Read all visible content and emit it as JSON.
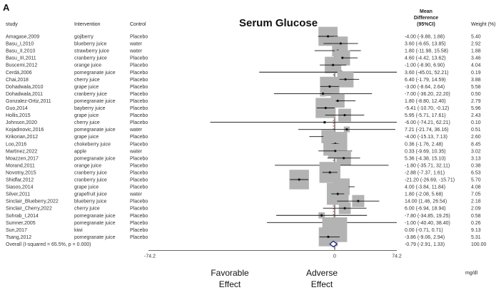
{
  "panel_label": "A",
  "chart_title": "Serum Glucose",
  "headers": {
    "study": "study",
    "intervention": "Intervention",
    "control": "Control",
    "mean_difference": [
      "Mean",
      "Difference",
      "(95%CI)"
    ],
    "weight": "Weight (%)"
  },
  "axis": {
    "left_tick": "-74.2",
    "center_tick": "0",
    "right_tick": "74.2",
    "unit": "mg/dl",
    "favorable_label": [
      "Favorable",
      "Effect"
    ],
    "adverse_label": [
      "Adverse",
      "Effect"
    ]
  },
  "chart_data": {
    "type": "forest",
    "xlim": [
      -74.2,
      74.2
    ],
    "reference_line": 0,
    "studies": [
      {
        "study": "Amagase,2009",
        "intervention": "gojiberry",
        "control": "Placebo",
        "md": -4.0,
        "lo": -9.88,
        "hi": 1.88,
        "ci_text": "-4.00 (-9.88, 1.88)",
        "weight": "5.40",
        "w": 5.4
      },
      {
        "study": "Basu_I,2010",
        "intervention": "blueberry juice",
        "control": "water",
        "md": 3.6,
        "lo": -6.65,
        "hi": 13.85,
        "ci_text": "3.60 (-6.65, 13.85)",
        "weight": "2.92",
        "w": 2.92
      },
      {
        "study": "Basu_II,2010",
        "intervention": "strawberry juice",
        "control": "water",
        "md": 1.8,
        "lo": -11.98,
        "hi": 15.58,
        "ci_text": "1.80 (-11.98, 15.58)",
        "weight": "1.88",
        "w": 1.88
      },
      {
        "study": "Basu_III,2011",
        "intervention": "cranberry juice",
        "control": "Placebo",
        "md": 4.6,
        "lo": -4.42,
        "hi": 13.62,
        "ci_text": "4.60 (-4.42, 13.62)",
        "weight": "3.46",
        "w": 3.46
      },
      {
        "study": "Buscemi,2012",
        "intervention": "orange juice",
        "control": "Placebo",
        "md": -1.0,
        "lo": -8.9,
        "hi": 6.9,
        "ci_text": "-1.00 (-8.90, 6.90)",
        "weight": "4.04",
        "w": 4.04
      },
      {
        "study": "Cerdá,2006",
        "intervention": "pomegranate juice",
        "control": "Placebo",
        "md": 3.6,
        "lo": -45.01,
        "hi": 52.21,
        "ci_text": "3.60 (-45.01, 52.21)",
        "weight": "0.19",
        "w": 0.19
      },
      {
        "study": "Chai,2018",
        "intervention": "cherry juice",
        "control": "Placebo",
        "md": 6.4,
        "lo": -1.79,
        "hi": 14.59,
        "ci_text": "6.40 (-1.79, 14.59)",
        "weight": "3.88",
        "w": 3.88
      },
      {
        "study": "Dohadwala,2010",
        "intervention": "grape juice",
        "control": "Placebo",
        "md": -3.0,
        "lo": -8.64,
        "hi": 2.64,
        "ci_text": "-3.00 (-8.64, 2.64)",
        "weight": "5.58",
        "w": 5.58
      },
      {
        "study": "Dohadwala,2011",
        "intervention": "cranberry juice",
        "control": "Placebo",
        "md": -7.0,
        "lo": -36.2,
        "hi": 22.2,
        "ci_text": "-7.00 (-36.20, 22.20)",
        "weight": "0.50",
        "w": 0.5
      },
      {
        "study": "Gonzalez-Ortiz,2011",
        "intervention": "pomegranate juice",
        "control": "Placebo",
        "md": 1.8,
        "lo": -8.8,
        "hi": 12.4,
        "ci_text": "1.80 (-8.80, 12.40)",
        "weight": "2.79",
        "w": 2.79
      },
      {
        "study": "Guo,2014",
        "intervention": "bayberry juice",
        "control": "Placebo",
        "md": -5.41,
        "lo": -10.7,
        "hi": -0.12,
        "ci_text": "-5.41 (-10.70, -0.12)",
        "weight": "5.96",
        "w": 5.96
      },
      {
        "study": "Hollis,2015",
        "intervention": "grape juice",
        "control": "Placebo",
        "md": 5.95,
        "lo": -5.71,
        "hi": 17.61,
        "ci_text": "5.95 (-5.71, 17.61)",
        "weight": "2.43",
        "w": 2.43
      },
      {
        "study": "Johnson,2020",
        "intervention": "cherry juice",
        "control": "Placebo",
        "md": -6.0,
        "lo": -74.21,
        "hi": 62.21,
        "ci_text": "-6.00 (-74.21, 62.21)",
        "weight": "0.10",
        "w": 0.1
      },
      {
        "study": "Kojadinovic,2016",
        "intervention": "pomegranate juice",
        "control": "water",
        "md": 7.21,
        "lo": -21.74,
        "hi": 36.16,
        "ci_text": "7.21 (-21.74, 36.16)",
        "weight": "0.51",
        "w": 0.51
      },
      {
        "study": "Krikorian,2012",
        "intervention": "grape juice",
        "control": "Placebo",
        "md": -4.0,
        "lo": -15.13,
        "hi": 7.13,
        "ci_text": "-4.00 (-15.13, 7.13)",
        "weight": "2.60",
        "w": 2.6
      },
      {
        "study": "Loo,2016",
        "intervention": "chokeberry juice",
        "control": "Placebo",
        "md": 0.36,
        "lo": -1.76,
        "hi": 2.48,
        "ci_text": "0.36 (-1.76, 2.48)",
        "weight": "8.45",
        "w": 8.45
      },
      {
        "study": "Martinez,2022",
        "intervention": "apple",
        "control": "water",
        "md": 0.33,
        "lo": -9.69,
        "hi": 10.35,
        "ci_text": "0.33 (-9.69, 10.35)",
        "weight": "3.02",
        "w": 3.02
      },
      {
        "study": "Moazzen,2017",
        "intervention": "pomegranate juice",
        "control": "Placebo",
        "md": 5.36,
        "lo": -4.38,
        "hi": 15.1,
        "ci_text": "5.36 (-4.38, 15.10)",
        "weight": "3.13",
        "w": 3.13
      },
      {
        "study": "Morand,2011",
        "intervention": "orange juice",
        "control": "Placebo",
        "md": -1.8,
        "lo": -35.71,
        "hi": 32.11,
        "ci_text": "-1.80 (-35.71, 32.11)",
        "weight": "0.38",
        "w": 0.38
      },
      {
        "study": "Novotny,2015",
        "intervention": "cranberry juice",
        "control": "Placebo",
        "md": -2.88,
        "lo": -7.37,
        "hi": 1.61,
        "ci_text": "-2.88 (-7.37, 1.61)",
        "weight": "6.53",
        "w": 6.53
      },
      {
        "study": "Shidfar,2012",
        "intervention": "cranberry juice",
        "control": "Placebo",
        "md": -21.2,
        "lo": -26.69,
        "hi": -15.71,
        "ci_text": "-21.20 (-26.69, -15.71)",
        "weight": "5.70",
        "w": 5.7
      },
      {
        "study": "Siasos,2014",
        "intervention": "grape juice",
        "control": "Placebo",
        "md": 4.0,
        "lo": -3.84,
        "hi": 11.84,
        "ci_text": "4.00 (-3.84, 11.84)",
        "weight": "4.08",
        "w": 4.08
      },
      {
        "study": "Silver,2011",
        "intervention": "grapefruit juice",
        "control": "water",
        "md": 1.8,
        "lo": -2.08,
        "hi": 5.68,
        "ci_text": "1.80 (-2.08, 5.68)",
        "weight": "7.05",
        "w": 7.05
      },
      {
        "study": "Sinclair_Blueberry,2022",
        "intervention": "blueberry juice",
        "control": "Placebo",
        "md": 14.0,
        "lo": 1.46,
        "hi": 26.54,
        "ci_text": "14.00 (1.46, 26.54)",
        "weight": "2.18",
        "w": 2.18
      },
      {
        "study": "Sinclair_Cherry,2022",
        "intervention": "cherry juice",
        "control": "Placebo",
        "md": 6.0,
        "lo": -6.94,
        "hi": 18.94,
        "ci_text": "6.00 (-6.94, 18.94)",
        "weight": "2.09",
        "w": 2.09
      },
      {
        "study": "Sohrab_I,2014",
        "intervention": "pomegranate juice",
        "control": "Placebo",
        "md": -7.8,
        "lo": -34.85,
        "hi": 19.25,
        "ci_text": "-7.80 (-34.85, 19.25)",
        "weight": "0.58",
        "w": 0.58
      },
      {
        "study": "Sumner,2005",
        "intervention": "pomegranate juice",
        "control": "Placebo",
        "md": -1.0,
        "lo": -40.4,
        "hi": 38.4,
        "ci_text": "-1.00 (-40.40, 38.40)",
        "weight": "0.26",
        "w": 0.26
      },
      {
        "study": "Sun,2017",
        "intervention": "kiwi",
        "control": "Placebo",
        "md": 0.0,
        "lo": -0.71,
        "hi": 0.71,
        "ci_text": "0.00 (-0.71, 0.71)",
        "weight": "9.13",
        "w": 9.13
      },
      {
        "study": "Tsang,2012",
        "intervention": "pomegranate juice",
        "control": "Placebo",
        "md": -3.86,
        "lo": -9.06,
        "hi": 2.94,
        "ci_text": "-3.86 (-9.06, 2.94)",
        "weight": "5.31",
        "w": 5.31
      }
    ],
    "overall": {
      "label": "Overall  (I-squared = 65.5%, p = 0.000)",
      "md": -0.79,
      "lo": -2.91,
      "hi": 1.33,
      "ci_text": "-0.79 (-2.91, 1.33)",
      "weight": "100.00"
    }
  }
}
